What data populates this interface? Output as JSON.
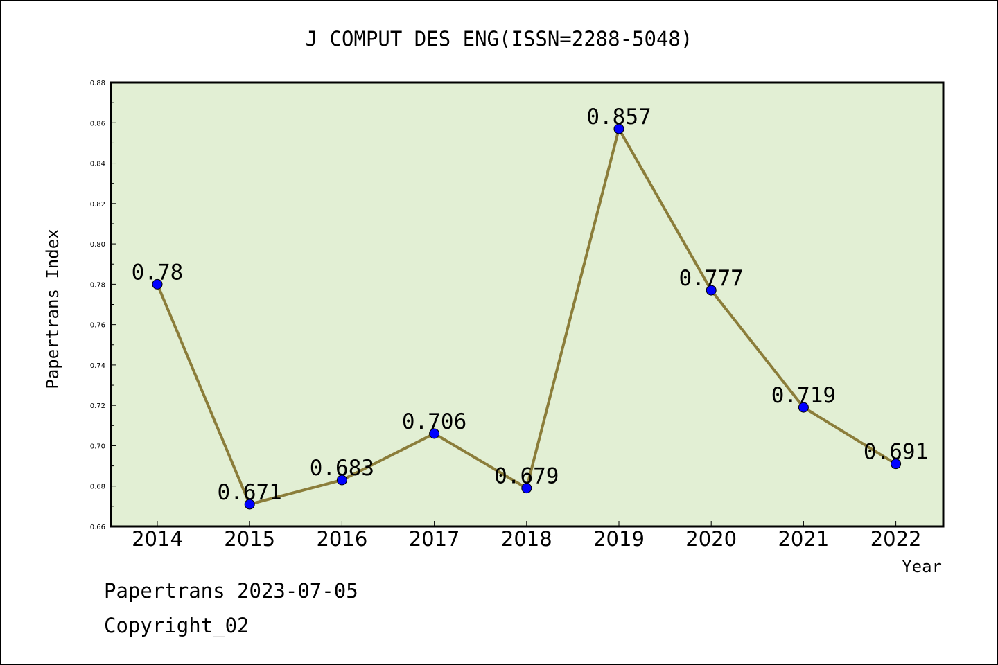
{
  "chart_data": {
    "type": "line",
    "title": "J COMPUT DES ENG(ISSN=2288-5048)",
    "xlabel": "Year",
    "ylabel": "Papertrans Index",
    "categories": [
      "2014",
      "2015",
      "2016",
      "2017",
      "2018",
      "2019",
      "2020",
      "2021",
      "2022"
    ],
    "series": [
      {
        "values": [
          0.78,
          0.671,
          0.683,
          0.706,
          0.679,
          0.857,
          0.777,
          0.719,
          0.691
        ],
        "labels": [
          "0.78",
          "0.671",
          "0.683",
          "0.706",
          "0.679",
          "0.857",
          "0.777",
          "0.719",
          "0.691"
        ],
        "line_color": "#8b7d3a",
        "marker_color": "#0000ff"
      }
    ],
    "ylim": [
      0.66,
      0.88
    ],
    "yticks": [
      "0.66",
      "0.68",
      "0.70",
      "0.72",
      "0.74",
      "0.76",
      "0.78",
      "0.80",
      "0.82",
      "0.84",
      "0.86",
      "0.88"
    ],
    "plot_background": "#e2efd4",
    "grid": false,
    "legend": "none"
  },
  "footer": {
    "date_line": "Papertrans 2023-07-05",
    "copyright_line": "Copyright_02"
  }
}
